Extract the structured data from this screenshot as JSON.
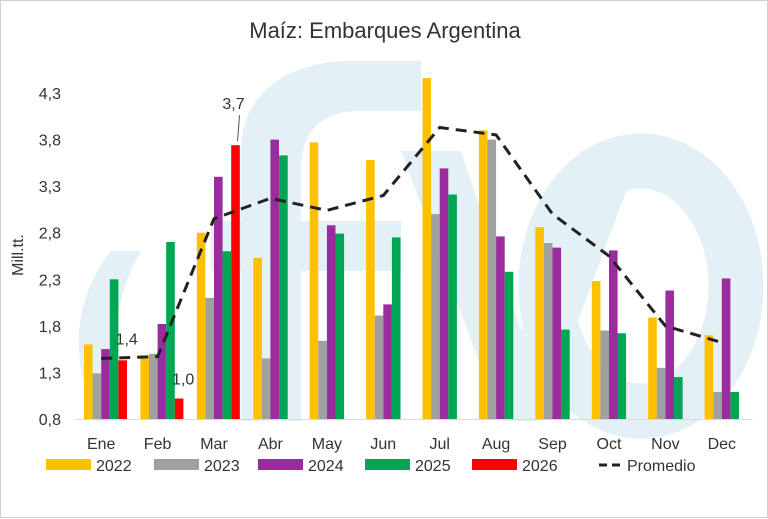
{
  "chart_data": {
    "type": "bar",
    "title": "Maíz: Embarques Argentina",
    "ylabel": "Mill.tt.",
    "xlabel": "",
    "ylim": [
      0.8,
      4.5
    ],
    "yticks": [
      0.8,
      1.3,
      1.8,
      2.3,
      2.8,
      3.3,
      3.8,
      4.3
    ],
    "ytick_labels": [
      "0,8",
      "1,3",
      "1,8",
      "2,3",
      "2,8",
      "3,3",
      "3,8",
      "4,3"
    ],
    "categories": [
      "Ene",
      "Feb",
      "Mar",
      "Abr",
      "May",
      "Jun",
      "Jul",
      "Aug",
      "Sep",
      "Oct",
      "Nov",
      "Dec"
    ],
    "series": [
      {
        "name": "2022",
        "color": "#FFC000",
        "values": [
          1.6,
          1.48,
          2.8,
          2.53,
          3.77,
          3.58,
          4.46,
          3.9,
          2.86,
          2.28,
          1.89,
          1.7
        ]
      },
      {
        "name": "2023",
        "color": "#A0A0A0",
        "values": [
          1.29,
          1.5,
          2.1,
          1.45,
          1.64,
          1.91,
          3.0,
          3.8,
          2.69,
          1.75,
          1.35,
          1.09
        ]
      },
      {
        "name": "2024",
        "color": "#9B2C9D",
        "values": [
          1.55,
          1.82,
          3.4,
          3.8,
          2.88,
          2.03,
          3.49,
          2.76,
          2.64,
          2.61,
          2.18,
          2.31
        ]
      },
      {
        "name": "2025",
        "color": "#00A651",
        "values": [
          2.3,
          2.7,
          2.6,
          3.63,
          2.79,
          2.75,
          3.21,
          2.38,
          1.76,
          1.72,
          1.25,
          1.09
        ]
      },
      {
        "name": "2026",
        "color": "#FF0000",
        "values": [
          1.43,
          1.02,
          3.74,
          null,
          null,
          null,
          null,
          null,
          null,
          null,
          null,
          null
        ]
      }
    ],
    "line_series": {
      "name": "Promedio",
      "color": "#222222",
      "dash": "dashed",
      "values": [
        1.45,
        1.47,
        2.95,
        3.17,
        3.04,
        3.2,
        3.93,
        3.85,
        3.0,
        2.55,
        1.8,
        1.62
      ]
    },
    "annotations": [
      {
        "text": "1,4",
        "category": "Ene",
        "series": "2026"
      },
      {
        "text": "1,0",
        "category": "Feb",
        "series": "2026"
      },
      {
        "text": "3,7",
        "category": "Mar",
        "series": "2026"
      }
    ],
    "grid": false,
    "legend": "bottom",
    "watermark_text": "cfyo"
  }
}
